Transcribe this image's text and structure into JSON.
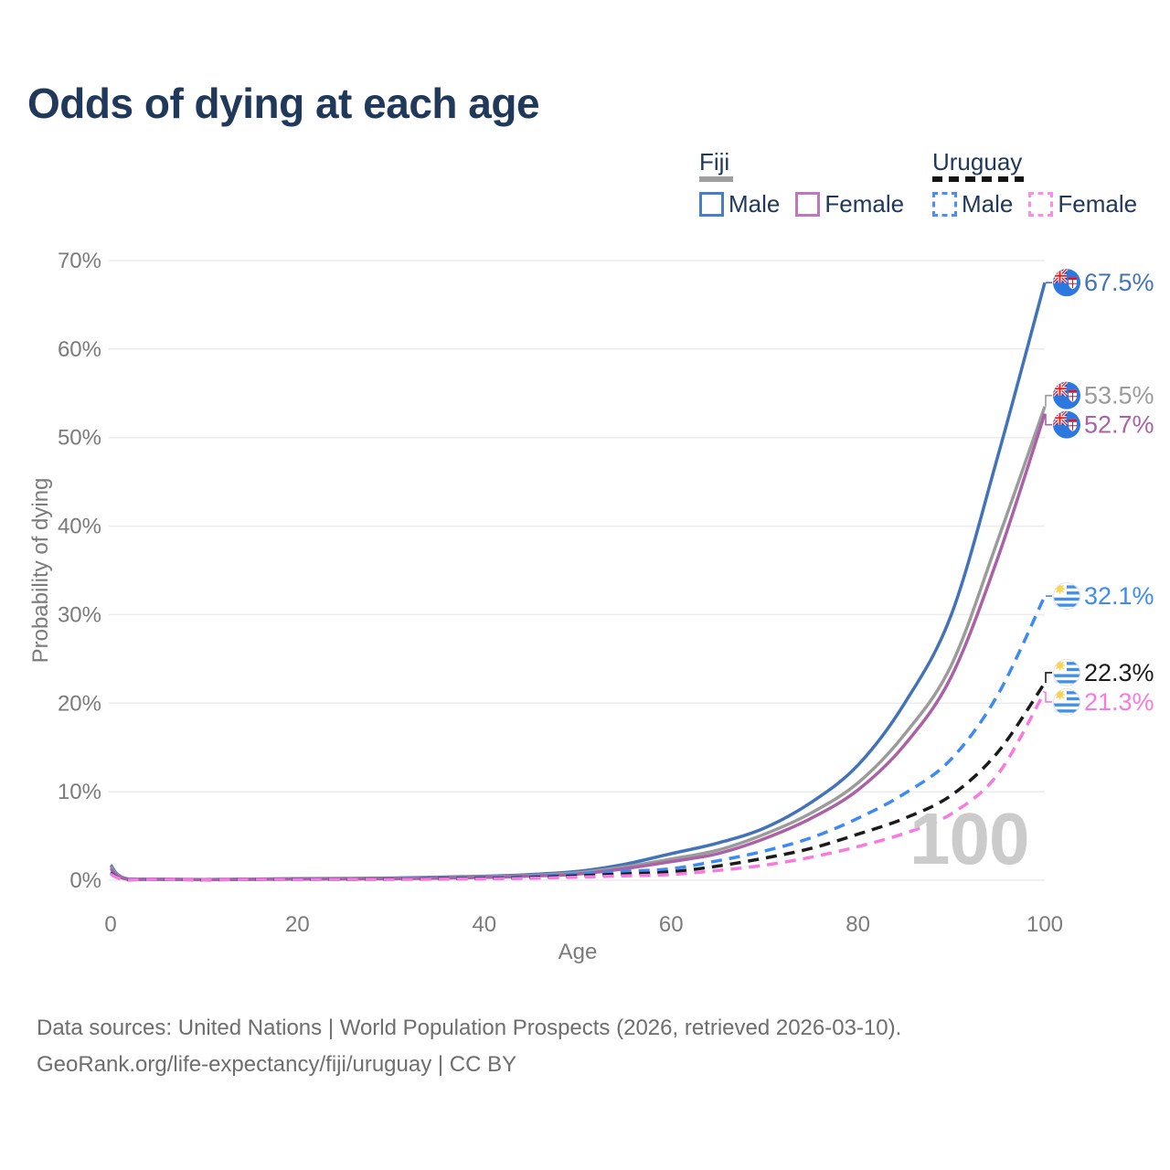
{
  "title": "Odds of dying at each age",
  "legend": {
    "groups": [
      {
        "label": "Fiji",
        "line_style": "solid",
        "underline_color": "#9e9e9e",
        "items": [
          {
            "label": "Male",
            "color": "#4a7cc7"
          },
          {
            "label": "Female",
            "color": "#bd7ab9"
          }
        ]
      },
      {
        "label": "Uruguay",
        "line_style": "dashed",
        "underline_color": "#151515",
        "items": [
          {
            "label": "Male",
            "color": "#4f8df6"
          },
          {
            "label": "Female",
            "color": "#ff8ce4"
          }
        ]
      }
    ]
  },
  "chart_data": {
    "type": "line",
    "title": "Odds of dying at each age",
    "xlabel": "Age",
    "ylabel": "Probability of dying",
    "xlim": [
      0,
      100
    ],
    "ylim": [
      0,
      70
    ],
    "x_ticks": [
      0,
      20,
      40,
      60,
      80,
      100
    ],
    "y_ticks": [
      "0%",
      "10%",
      "20%",
      "30%",
      "40%",
      "50%",
      "60%",
      "70%"
    ],
    "grid": "horizontal",
    "ages": [
      0,
      2,
      10,
      20,
      30,
      40,
      45,
      50,
      55,
      60,
      65,
      70,
      75,
      80,
      85,
      90,
      95,
      100
    ],
    "series": [
      {
        "name": "Fiji Male",
        "country": "Fiji",
        "sex": "Male",
        "color": "#4273b9",
        "dash": false,
        "flag": "fiji",
        "end_label": "67.5%",
        "values": [
          1.7,
          0.12,
          0.08,
          0.18,
          0.25,
          0.45,
          0.65,
          1.0,
          1.8,
          3.0,
          4.2,
          5.9,
          8.8,
          13.0,
          20.0,
          30.0,
          48.0,
          67.5
        ]
      },
      {
        "name": "Fiji",
        "country": "Fiji",
        "sex": "Both",
        "color": "#9b9b9b",
        "dash": false,
        "flag": "fiji",
        "end_label": "53.5%",
        "values": [
          1.5,
          0.1,
          0.07,
          0.15,
          0.2,
          0.38,
          0.55,
          0.85,
          1.5,
          2.4,
          3.4,
          5.2,
          7.6,
          11.0,
          16.5,
          24.3,
          38.5,
          53.5
        ]
      },
      {
        "name": "Fiji Female",
        "country": "Fiji",
        "sex": "Female",
        "color": "#aa61a6",
        "dash": false,
        "flag": "fiji",
        "end_label": "52.7%",
        "values": [
          1.3,
          0.09,
          0.06,
          0.12,
          0.17,
          0.32,
          0.47,
          0.7,
          1.3,
          2.1,
          3.0,
          4.7,
          7.0,
          10.2,
          15.3,
          23.0,
          36.5,
          52.7
        ]
      },
      {
        "name": "Uruguay Male",
        "country": "Uruguay",
        "sex": "Male",
        "color": "#3d8af5",
        "dash": true,
        "flag": "uruguay",
        "end_label": "32.1%",
        "values": [
          0.9,
          0.06,
          0.04,
          0.12,
          0.15,
          0.28,
          0.4,
          0.7,
          1.0,
          1.3,
          2.2,
          3.3,
          4.8,
          7.0,
          9.8,
          13.7,
          21.0,
          32.1
        ]
      },
      {
        "name": "Uruguay",
        "country": "Uruguay",
        "sex": "Both",
        "color": "#1b1b1b",
        "dash": true,
        "flag": "uruguay",
        "end_label": "22.3%",
        "values": [
          0.8,
          0.05,
          0.03,
          0.09,
          0.12,
          0.22,
          0.3,
          0.5,
          0.7,
          0.95,
          1.6,
          2.5,
          3.6,
          5.2,
          7.0,
          9.6,
          14.5,
          22.3
        ]
      },
      {
        "name": "Uruguay Female",
        "country": "Uruguay",
        "sex": "Female",
        "color": "#f97ade",
        "dash": true,
        "flag": "uruguay",
        "end_label": "21.3%",
        "values": [
          0.7,
          0.05,
          0.03,
          0.06,
          0.09,
          0.16,
          0.22,
          0.35,
          0.5,
          0.65,
          1.1,
          1.7,
          2.6,
          3.8,
          5.3,
          7.5,
          12.0,
          21.3
        ]
      }
    ]
  },
  "watermark": "100",
  "footer": {
    "line1": "Data sources: United Nations | World Population Prospects (2026, retrieved 2026-03-10).",
    "line2": "GeoRank.org/life-expectancy/fiji/uruguay | CC BY"
  },
  "colors": {
    "title_text": "#20395a",
    "axis_text": "#7b7b7b",
    "gridline": "#ececec",
    "watermark": "#cbcbcb",
    "footer_text": "#6e6e6e"
  }
}
